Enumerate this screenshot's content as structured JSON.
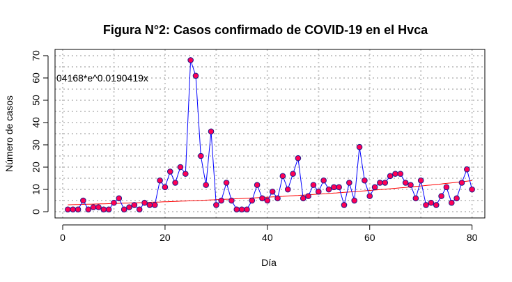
{
  "chart_data": {
    "type": "scatter",
    "title": "Figura N°2: Casos confirmado de COVID-19 en el Hvca",
    "xlabel": "Día",
    "ylabel": "Número de casos",
    "annotation": "04168*e^0.0190419x",
    "xlim": [
      -1.5,
      82.5
    ],
    "ylim": [
      -2.8,
      72.8
    ],
    "xticks": [
      0,
      20,
      40,
      60,
      80
    ],
    "yticks": [
      0,
      10,
      20,
      30,
      40,
      50,
      60,
      70
    ],
    "grid": true,
    "colors": {
      "points_fill": "#ff0055",
      "points_stroke": "#1a1a8c",
      "connecting_line": "#0000ff",
      "trend_line": "#ff0000",
      "grid": "#c8c8c8"
    },
    "series": [
      {
        "x": [
          1,
          2,
          3,
          4,
          5,
          6,
          7,
          8,
          9,
          10,
          11,
          12,
          13,
          14,
          15,
          16,
          17,
          18,
          19,
          20,
          21,
          22,
          23,
          24,
          25,
          26,
          27,
          28,
          29,
          30,
          31,
          32,
          33,
          34,
          35,
          36,
          37,
          38,
          39,
          40,
          41,
          42,
          43,
          44,
          45,
          46,
          47,
          48,
          49,
          50,
          51,
          52,
          53,
          54,
          55,
          56,
          57,
          58,
          59,
          60,
          61,
          62,
          63,
          64,
          65,
          66,
          67,
          68,
          69,
          70,
          71,
          72,
          73,
          74,
          75,
          76,
          77,
          78,
          79,
          80
        ],
        "y": [
          1,
          1,
          1,
          5,
          1,
          2,
          2,
          1,
          1,
          4,
          6,
          1,
          2,
          3,
          1,
          4,
          3,
          3,
          14,
          11,
          18,
          13,
          20,
          17,
          68,
          61,
          25,
          12,
          36,
          3,
          5,
          13,
          5,
          1,
          1,
          1,
          5,
          12,
          6,
          5,
          9,
          6,
          16,
          10,
          17,
          24,
          6,
          7,
          12,
          9,
          14,
          10,
          11,
          11,
          3,
          13,
          5,
          29,
          14,
          7,
          11,
          13,
          13,
          16,
          17,
          17,
          13,
          12,
          6,
          14,
          3,
          4,
          3,
          7,
          11,
          4,
          6,
          13,
          19,
          10
        ]
      }
    ],
    "trend": {
      "a": 3.04168,
      "b": 0.0190419
    }
  }
}
